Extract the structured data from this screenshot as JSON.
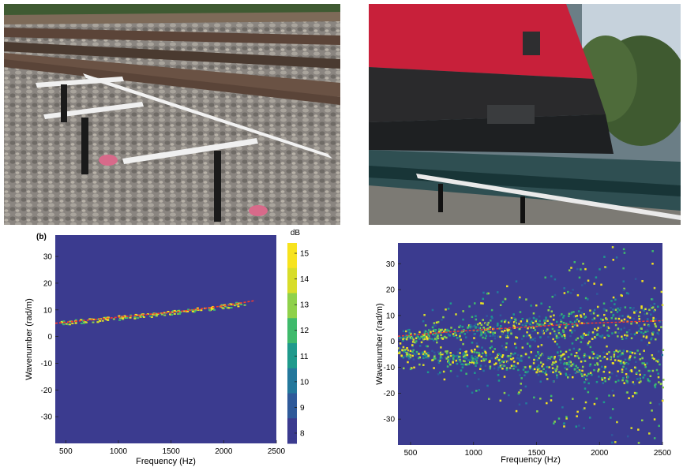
{
  "photos": [
    {
      "name": "sensor-array-on-ballast"
    },
    {
      "name": "passing-red-locomotive"
    }
  ],
  "chart_data": [
    {
      "type": "heatmap",
      "panel_label": "(b)",
      "xlabel": "Frequency (Hz)",
      "ylabel": "Wavenumber (rad/m)",
      "xlim": [
        400,
        2500
      ],
      "ylim": [
        -40,
        38
      ],
      "x_ticks": [
        500,
        1000,
        1500,
        2000,
        2500
      ],
      "y_ticks": [
        30,
        20,
        10,
        0,
        -10,
        -20,
        -30
      ],
      "colorbar": {
        "label": "dB",
        "min": 7.6,
        "max": 15.4,
        "ticks": [
          15,
          14,
          13,
          12,
          11,
          10,
          9,
          8
        ]
      },
      "background_color": "#3b3b8f",
      "dispersion_curve": {
        "x": [
          400,
          800,
          1200,
          1600,
          2000,
          2300
        ],
        "y": [
          5,
          6.5,
          8,
          9.5,
          11.5,
          13.5
        ]
      },
      "curve_color": "#ff3a2a"
    },
    {
      "type": "heatmap",
      "panel_label": "",
      "xlabel": "Frequency (Hz)",
      "ylabel": "Wavenumber (rad/m)",
      "xlim": [
        400,
        2500
      ],
      "ylim": [
        -40,
        38
      ],
      "x_ticks": [
        500,
        1000,
        1500,
        2000,
        2500
      ],
      "y_ticks": [
        30,
        20,
        10,
        0,
        -10,
        -20,
        -30
      ],
      "background_color": "#3b3b8f",
      "dispersion_curve": {
        "x": [
          400,
          900,
          1400,
          1900,
          2500
        ],
        "y": [
          2,
          4,
          5.5,
          7,
          8
        ]
      },
      "curve_color": "#ff3a2a"
    }
  ]
}
